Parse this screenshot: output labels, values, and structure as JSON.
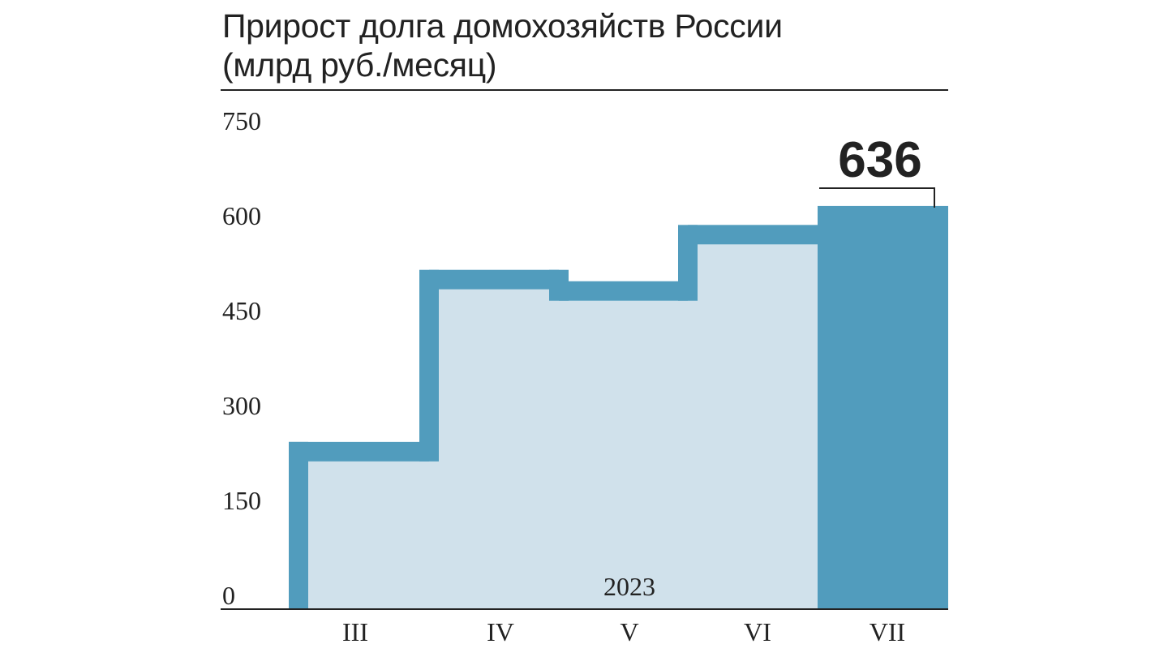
{
  "title_lines": [
    "Прирост долга домохозяйств России",
    "(млрд руб./месяц)"
  ],
  "chart_data": {
    "type": "bar",
    "title": "Прирост долга домохозяйств России (млрд руб./месяц)",
    "categories": [
      "III",
      "IV",
      "V",
      "VI",
      "VII"
    ],
    "values": [
      263,
      535,
      517,
      606,
      636
    ],
    "highlight_index": 4,
    "highlight_label": "636",
    "year_label": "2023",
    "ylim": [
      0,
      750
    ],
    "yticks": [
      "0",
      "150",
      "300",
      "450",
      "600",
      "750"
    ],
    "grid": false,
    "legend": "none",
    "colors": {
      "accent": "#519CBD",
      "fill": "#D0E1EB",
      "text": "#222222"
    }
  }
}
